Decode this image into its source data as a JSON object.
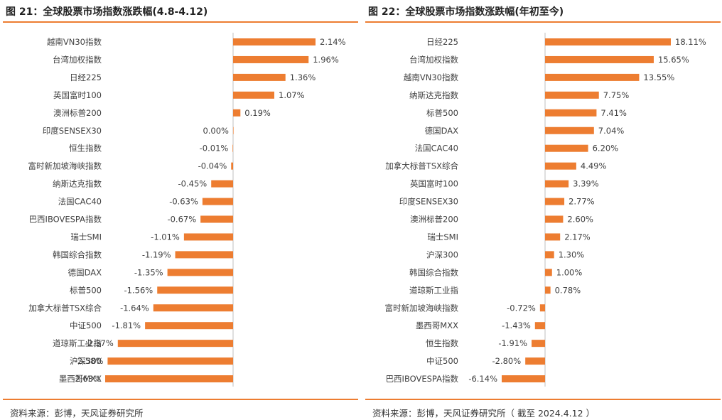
{
  "colors": {
    "bar": "#ed7d31",
    "rule": "#ed7d31",
    "axis": "#bfbfbf"
  },
  "left": {
    "title": "图 21：全球股票市场指数涨跌幅(4.8-4.12)",
    "source": "资料来源：彭博，天风证券研究所",
    "value_labels": [
      "2.14%",
      "1.96%",
      "1.36%",
      "1.07%",
      "0.19%",
      "0.00%",
      "-0.01%",
      "-0.04%",
      "-0.45%",
      "-0.63%",
      "-0.67%",
      "-1.01%",
      "-1.19%",
      "-1.35%",
      "-1.56%",
      "-1.64%",
      "-1.81%",
      "-2.37%",
      "-2.58%",
      "-2.63%"
    ]
  },
  "right": {
    "title": "图 22：全球股票市场指数涨跌幅(年初至今)",
    "source": "资料来源：彭博，天风证券研究所（ 截至 2024.4.12 ）",
    "value_labels": [
      "18.11%",
      "15.65%",
      "13.55%",
      "7.75%",
      "7.41%",
      "7.04%",
      "6.20%",
      "4.49%",
      "3.39%",
      "2.77%",
      "2.60%",
      "2.17%",
      "1.30%",
      "1.00%",
      "0.78%",
      "-0.72%",
      "-1.43%",
      "-1.91%",
      "-2.80%",
      "-6.14%"
    ]
  },
  "chart_data": [
    {
      "type": "bar",
      "orientation": "horizontal",
      "title": "图 21：全球股票市场指数涨跌幅(4.8-4.12)",
      "unit": "%",
      "categories": [
        "越南VN30指数",
        "台湾加权指数",
        "日经225",
        "英国富时100",
        "澳洲标普200",
        "印度SENSEX30",
        "恒生指数",
        "富时新加坡海峡指数",
        "纳斯达克指数",
        "法国CAC40",
        "巴西IBOVESPA指数",
        "瑞士SMI",
        "韩国综合指数",
        "德国DAX",
        "标普500",
        "加拿大标普TSX综合",
        "中证500",
        "道琼斯工业指",
        "沪深300",
        "墨西哥MXX"
      ],
      "values": [
        2.14,
        1.96,
        1.36,
        1.07,
        0.19,
        0.0,
        -0.01,
        -0.04,
        -0.45,
        -0.63,
        -0.67,
        -1.01,
        -1.19,
        -1.35,
        -1.56,
        -1.64,
        -1.81,
        -2.37,
        -2.58,
        -2.63
      ],
      "xlim": [
        -2.63,
        2.14
      ],
      "grid": false,
      "legend": "none"
    },
    {
      "type": "bar",
      "orientation": "horizontal",
      "title": "图 22：全球股票市场指数涨跌幅(年初至今)",
      "unit": "%",
      "categories": [
        "日经225",
        "台湾加权指数",
        "越南VN30指数",
        "纳斯达克指数",
        "标普500",
        "德国DAX",
        "法国CAC40",
        "加拿大标普TSX综合",
        "英国富时100",
        "印度SENSEX30",
        "澳洲标普200",
        "瑞士SMI",
        "沪深300",
        "韩国综合指数",
        "道琼斯工业指",
        "富时新加坡海峡指数",
        "墨西哥MXX",
        "恒生指数",
        "中证500",
        "巴西IBOVESPA指数"
      ],
      "values": [
        18.11,
        15.65,
        13.55,
        7.75,
        7.41,
        7.04,
        6.2,
        4.49,
        3.39,
        2.77,
        2.6,
        2.17,
        1.3,
        1.0,
        0.78,
        -0.72,
        -1.43,
        -1.91,
        -2.8,
        -6.14
      ],
      "xlim": [
        -6.14,
        18.11
      ],
      "grid": false,
      "legend": "none"
    }
  ]
}
